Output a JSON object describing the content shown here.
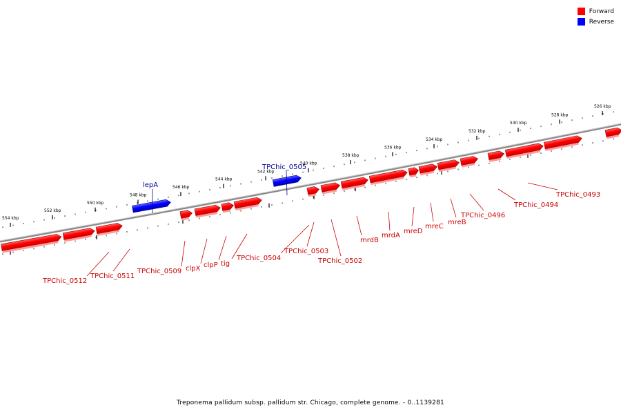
{
  "legend": {
    "forward_label": "Forward",
    "reverse_label": "Reverse",
    "forward_color": "#ff0000",
    "reverse_color": "#0000ff"
  },
  "caption": "Treponema pallidum subsp. pallidum str. Chicago, complete genome. - 0..1139281",
  "colors": {
    "forward_label": "#cc0000",
    "reverse_label": "#000099",
    "backbone": "#808080"
  },
  "ticks": [
    {
      "label": "526 kbp",
      "kbp": 526
    },
    {
      "label": "528 kbp",
      "kbp": 528
    },
    {
      "label": "530 kbp",
      "kbp": 530
    },
    {
      "label": "532 kbp",
      "kbp": 532
    },
    {
      "label": "534 kbp",
      "kbp": 534
    },
    {
      "label": "536 kbp",
      "kbp": 536
    },
    {
      "label": "538 kbp",
      "kbp": 538
    },
    {
      "label": "540 kbp",
      "kbp": 540
    },
    {
      "label": "542 kbp",
      "kbp": 542
    },
    {
      "label": "544 kbp",
      "kbp": 544
    },
    {
      "label": "546 kbp",
      "kbp": 546
    },
    {
      "label": "548 kbp",
      "kbp": 548
    },
    {
      "label": "550 kbp",
      "kbp": 550
    },
    {
      "label": "552 kbp",
      "kbp": 552
    },
    {
      "label": "554 kbp",
      "kbp": 554
    }
  ],
  "genes": [
    {
      "name": "TPChic_0512",
      "strand": "forward",
      "labeled": true
    },
    {
      "name": "TPChic_0511",
      "strand": "forward",
      "labeled": true
    },
    {
      "name": "lepA",
      "strand": "reverse",
      "labeled": true
    },
    {
      "name": "TPChic_0509",
      "strand": "forward",
      "labeled": true
    },
    {
      "name": "clpX",
      "strand": "forward",
      "labeled": true
    },
    {
      "name": "clpP",
      "strand": "forward",
      "labeled": true
    },
    {
      "name": "tig",
      "strand": "forward",
      "labeled": true
    },
    {
      "name": "TPChic_0505",
      "strand": "reverse",
      "labeled": true
    },
    {
      "name": "TPChic_0504",
      "strand": "forward",
      "labeled": true
    },
    {
      "name": "TPChic_0503",
      "strand": "forward",
      "labeled": true
    },
    {
      "name": "TPChic_0502",
      "strand": "forward",
      "labeled": true
    },
    {
      "name": "mrdB",
      "strand": "forward",
      "labeled": true
    },
    {
      "name": "mrdA",
      "strand": "forward",
      "labeled": true
    },
    {
      "name": "mreD",
      "strand": "forward",
      "labeled": true
    },
    {
      "name": "mreC",
      "strand": "forward",
      "labeled": true
    },
    {
      "name": "mreB",
      "strand": "forward",
      "labeled": true
    },
    {
      "name": "TPChic_0496",
      "strand": "forward",
      "labeled": true
    },
    {
      "name": "TPChic_0494",
      "strand": "forward",
      "labeled": true
    },
    {
      "name": "TPChic_0493",
      "strand": "forward",
      "labeled": true
    }
  ]
}
